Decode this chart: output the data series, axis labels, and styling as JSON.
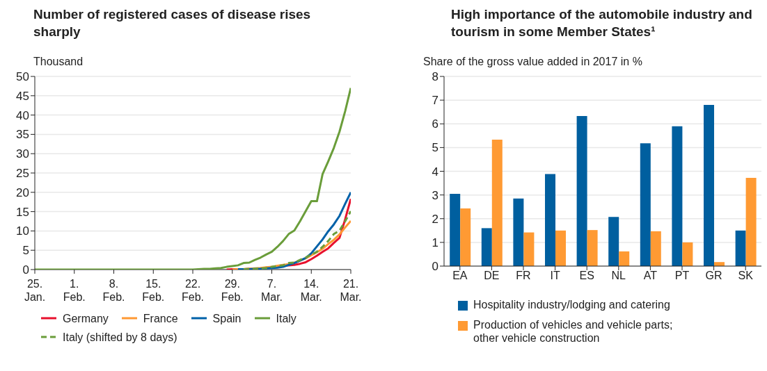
{
  "chart_data": [
    {
      "type": "line",
      "title": "Number of registered cases of disease rises sharply",
      "ylabel": "Thousand",
      "x": [
        "--01-25",
        "--01-26",
        "--01-27",
        "--01-28",
        "--01-29",
        "--01-30",
        "--01-31",
        "--02-01",
        "--02-02",
        "--02-03",
        "--02-04",
        "--02-05",
        "--02-06",
        "--02-07",
        "--02-08",
        "--02-09",
        "--02-10",
        "--02-11",
        "--02-12",
        "--02-13",
        "--02-14",
        "--02-15",
        "--02-16",
        "--02-17",
        "--02-18",
        "--02-19",
        "--02-20",
        "--02-21",
        "--02-22",
        "--02-23",
        "--02-24",
        "--02-25",
        "--02-26",
        "--02-27",
        "--02-28",
        "--02-29",
        "--03-01",
        "--03-02",
        "--03-03",
        "--03-04",
        "--03-05",
        "--03-06",
        "--03-07",
        "--03-08",
        "--03-09",
        "--03-10",
        "--03-11",
        "--03-12",
        "--03-13",
        "--03-14",
        "--03-15",
        "--03-16",
        "--03-17",
        "--03-18",
        "--03-19",
        "--03-20",
        "--03-21"
      ],
      "series": [
        {
          "name": "Germany",
          "color": "#e8112d",
          "values": [
            null,
            null,
            null,
            null,
            null,
            null,
            null,
            null,
            null,
            null,
            null,
            null,
            null,
            null,
            null,
            null,
            null,
            null,
            null,
            null,
            null,
            null,
            null,
            null,
            null,
            null,
            null,
            null,
            null,
            null,
            null,
            null,
            null,
            null,
            0,
            0.1,
            0.1,
            0.1,
            0.2,
            0.2,
            0.3,
            0.5,
            0.6,
            0.8,
            0.9,
            1.1,
            1.2,
            1.5,
            1.9,
            2.7,
            3.6,
            4.6,
            5.5,
            6.9,
            8.2,
            13.0,
            18.3
          ]
        },
        {
          "name": "France",
          "color": "#ff9933",
          "values": [
            null,
            null,
            null,
            null,
            null,
            null,
            null,
            null,
            null,
            null,
            null,
            null,
            null,
            null,
            null,
            null,
            null,
            null,
            null,
            null,
            null,
            null,
            null,
            null,
            null,
            null,
            null,
            null,
            null,
            null,
            null,
            null,
            null,
            null,
            null,
            0,
            0.1,
            0.1,
            0.2,
            0.3,
            0.4,
            0.6,
            0.7,
            1.0,
            1.2,
            1.4,
            1.8,
            2.3,
            2.9,
            3.7,
            4.5,
            5.4,
            6.6,
            7.7,
            9.1,
            10.9,
            12.6
          ]
        },
        {
          "name": "Spain",
          "color": "#0061a8",
          "values": [
            null,
            null,
            null,
            null,
            null,
            null,
            null,
            null,
            null,
            null,
            null,
            null,
            null,
            null,
            null,
            null,
            null,
            null,
            null,
            null,
            null,
            null,
            null,
            null,
            null,
            null,
            null,
            null,
            null,
            null,
            null,
            null,
            null,
            null,
            null,
            null,
            0.1,
            0.1,
            0.1,
            0.2,
            0.2,
            0.3,
            0.4,
            0.5,
            0.7,
            1.2,
            1.7,
            2.3,
            3.0,
            4.2,
            6.0,
            7.8,
            9.9,
            11.7,
            13.9,
            17.0,
            20.0
          ]
        },
        {
          "name": "Italy",
          "color": "#6a9d3a",
          "values": [
            0,
            0,
            0,
            0,
            0,
            0,
            0,
            0,
            0,
            0,
            0,
            0,
            0,
            0,
            0,
            0,
            0,
            0,
            0,
            0,
            0,
            0,
            0,
            0,
            0,
            0,
            0,
            0,
            0,
            0.1,
            0.2,
            0.2,
            0.3,
            0.4,
            0.7,
            0.9,
            1.1,
            1.7,
            1.8,
            2.5,
            3.1,
            3.9,
            4.6,
            5.9,
            7.4,
            9.2,
            10.1,
            12.5,
            15.1,
            17.7,
            17.7,
            24.7,
            28.0,
            31.5,
            35.7,
            41.0,
            47.0
          ]
        },
        {
          "name": "Italy (shifted by 8 days)",
          "color": "#6a9d3a",
          "line_style": "dashed",
          "values": [
            null,
            null,
            null,
            null,
            null,
            null,
            null,
            null,
            null,
            null,
            null,
            null,
            null,
            null,
            null,
            null,
            null,
            null,
            null,
            null,
            null,
            null,
            null,
            null,
            null,
            null,
            null,
            null,
            null,
            null,
            null,
            null,
            null,
            null,
            null,
            null,
            null,
            0.1,
            0.2,
            0.2,
            0.3,
            0.4,
            0.7,
            0.9,
            1.1,
            1.7,
            1.8,
            2.5,
            3.1,
            3.9,
            4.6,
            5.9,
            7.4,
            9.2,
            10.1,
            12.5,
            15.1
          ]
        }
      ],
      "xlim": [
        "--01-25",
        "--03-21"
      ],
      "xticks": [
        {
          "value": "--01-25",
          "label": "25. Jan."
        },
        {
          "value": "--02-01",
          "label": "1. Feb."
        },
        {
          "value": "--02-08",
          "label": "8. Feb."
        },
        {
          "value": "--02-15",
          "label": "15. Feb."
        },
        {
          "value": "--02-22",
          "label": "22. Feb."
        },
        {
          "value": "--02-29",
          "label": "29. Feb."
        },
        {
          "value": "--03-07",
          "label": "7. Mar."
        },
        {
          "value": "--03-14",
          "label": "14. Mar."
        },
        {
          "value": "--03-21",
          "label": "21. Mar."
        }
      ],
      "ylim": [
        0,
        50
      ],
      "yticks": [
        0,
        5,
        10,
        15,
        20,
        25,
        30,
        35,
        40,
        45,
        50
      ],
      "grid": "y",
      "legend": "bottom",
      "line_style": "solid",
      "marker": "none"
    },
    {
      "type": "bar",
      "title": "High importance of the automobile industry and tourism in some Member States¹",
      "ylabel": "Share of the gross value added in 2017 in %",
      "categories": [
        "EA",
        "DE",
        "FR",
        "IT",
        "ES",
        "NL",
        "AT",
        "PT",
        "GR",
        "SK"
      ],
      "series": [
        {
          "name": "Hospitality industry/lodging and catering",
          "color": "#005f9f",
          "values": [
            3.05,
            1.6,
            2.85,
            3.88,
            6.33,
            2.07,
            5.18,
            5.9,
            6.8,
            1.5
          ]
        },
        {
          "name": "Production of vehicles and vehicle parts; other vehicle construction",
          "color": "#ff9a33",
          "values": [
            2.43,
            5.33,
            1.42,
            1.5,
            1.52,
            0.62,
            1.47,
            1.0,
            0.17,
            3.72
          ]
        }
      ],
      "ylim": [
        0,
        8
      ],
      "yticks": [
        0,
        1,
        2,
        3,
        4,
        5,
        6,
        7,
        8
      ],
      "grid": "y",
      "legend": "bottom"
    }
  ]
}
